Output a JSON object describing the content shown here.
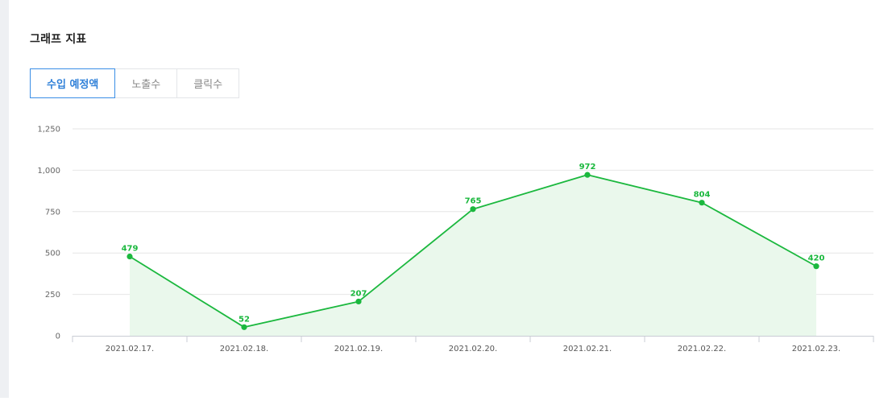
{
  "header": {
    "title": "그래프 지표"
  },
  "tabs": [
    {
      "label": "수입 예정액",
      "active": true
    },
    {
      "label": "노출수",
      "active": false
    },
    {
      "label": "클릭수",
      "active": false
    }
  ],
  "colors": {
    "line": "#1bb83e",
    "area": "#eaf8ec",
    "grid": "#e6e6e6",
    "axis": "#c9ccd4",
    "tab_active": "#3a8ee6"
  },
  "chart_data": {
    "type": "area",
    "x": [
      "2021.02.17.",
      "2021.02.18.",
      "2021.02.19.",
      "2021.02.20.",
      "2021.02.21.",
      "2021.02.22.",
      "2021.02.23."
    ],
    "series": [
      {
        "values": [
          479,
          52,
          207,
          765,
          972,
          804,
          420
        ]
      }
    ],
    "ylim": [
      0,
      1250
    ],
    "yticks": [
      0,
      250,
      500,
      750,
      1000,
      1250
    ],
    "ytick_labels": [
      "0",
      "250",
      "500",
      "750",
      "1,000",
      "1,250"
    ],
    "grid": true,
    "data_labels": true
  }
}
